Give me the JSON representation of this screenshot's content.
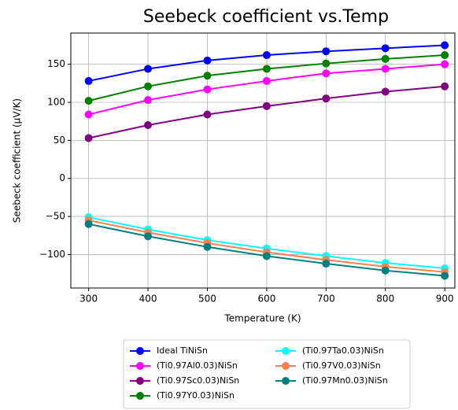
{
  "chart_data": {
    "type": "line",
    "title": "Seebeck coefficient vs.Temp",
    "x_label": "Temperature (K)",
    "y_label": "Seebeck coefficient (μV/K)",
    "x": [
      300,
      400,
      500,
      600,
      700,
      800,
      900
    ],
    "series": [
      {
        "name": "Ideal TiNiSn",
        "color": "#0000ff",
        "values": [
          128,
          144,
          155,
          162,
          167,
          171,
          175
        ]
      },
      {
        "name": "(Ti0.97Al0.03)NiSn",
        "color": "#ff00ff",
        "values": [
          84,
          103,
          117,
          128,
          138,
          144,
          150
        ]
      },
      {
        "name": "(Ti0.97Sc0.03)NiSn",
        "color": "#800080",
        "values": [
          53,
          70,
          84,
          95,
          105,
          114,
          121
        ]
      },
      {
        "name": "(Ti0.97Y0.03)NiSn",
        "color": "#008000",
        "values": [
          102,
          121,
          135,
          144,
          151,
          157,
          162
        ]
      },
      {
        "name": "(Ti0.97Ta0.03)NiSn",
        "color": "#00ffff",
        "values": [
          -51,
          -67,
          -81,
          -92,
          -102,
          -111,
          -118
        ]
      },
      {
        "name": "(Ti0.97V0.03)NiSn",
        "color": "#ff7f50",
        "values": [
          -55,
          -71,
          -85,
          -97,
          -107,
          -116,
          -123
        ]
      },
      {
        "name": "(Ti0.97Mn0.03)NiSn",
        "color": "#008080",
        "values": [
          -60,
          -76,
          -90,
          -102,
          -112,
          -121,
          -128
        ]
      }
    ],
    "xlim": [
      270,
      917
    ],
    "ylim": [
      -144,
      191
    ],
    "xticks": [
      300,
      400,
      500,
      600,
      700,
      800,
      900
    ],
    "yticks": [
      {
        "value": -100,
        "label": "−100"
      },
      {
        "value": -50,
        "label": "−50"
      },
      0,
      50,
      100,
      150
    ],
    "grid": true
  }
}
